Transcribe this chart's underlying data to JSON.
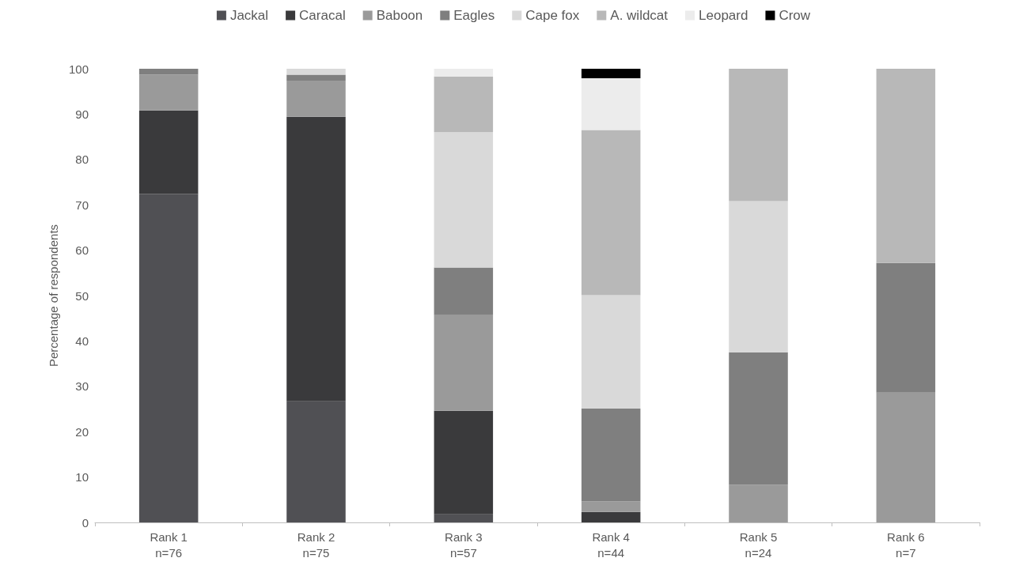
{
  "chart_data": {
    "type": "bar",
    "stacked": true,
    "ylabel": "Percentage of respondents",
    "categories": [
      "Rank 1\nn=76",
      "Rank 2\nn=75",
      "Rank 3\nn=57",
      "Rank 4\nn=44",
      "Rank 5\nn=24",
      "Rank 6\nn=7"
    ],
    "series": [
      {
        "name": "Jackal",
        "color": "#505054",
        "values": [
          72.4,
          26.7,
          1.8,
          0,
          0,
          0
        ]
      },
      {
        "name": "Caracal",
        "color": "#3a3a3c",
        "values": [
          18.4,
          62.7,
          22.8,
          2.3,
          0,
          0
        ]
      },
      {
        "name": "Baboon",
        "color": "#9a9a9a",
        "values": [
          7.9,
          8.0,
          21.1,
          2.3,
          8.3,
          28.6
        ]
      },
      {
        "name": "Eagles",
        "color": "#7f7f7f",
        "values": [
          1.3,
          1.3,
          10.5,
          20.5,
          29.2,
          28.6
        ]
      },
      {
        "name": "Cape fox",
        "color": "#d9d9d9",
        "values": [
          0,
          1.3,
          29.8,
          25.0,
          33.3,
          0
        ]
      },
      {
        "name": "A. wildcat",
        "color": "#b8b8b8",
        "values": [
          0,
          0,
          12.3,
          36.4,
          29.2,
          42.9
        ]
      },
      {
        "name": "Leopard",
        "color": "#ececec",
        "values": [
          0,
          0,
          1.8,
          11.4,
          0,
          0
        ]
      },
      {
        "name": "Crow",
        "color": "#000000",
        "values": [
          0,
          0,
          0,
          2.3,
          0,
          0
        ]
      }
    ],
    "ylim": [
      0,
      100
    ],
    "yticks": [
      0,
      10,
      20,
      30,
      40,
      50,
      60,
      70,
      80,
      90,
      100
    ],
    "grid": false,
    "legend": "top"
  }
}
